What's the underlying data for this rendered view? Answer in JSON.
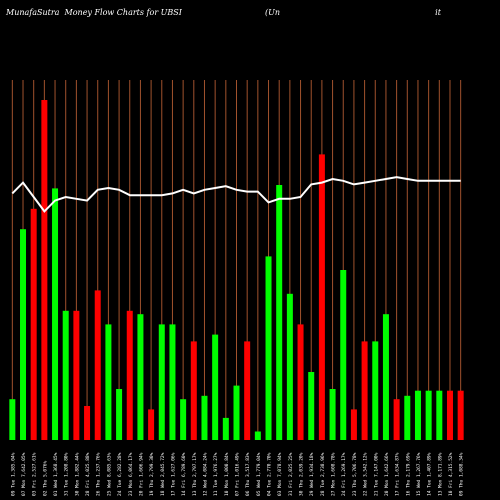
{
  "header": {
    "brand": "MunafaSutra",
    "subtitle": "Money Flow  Charts for UBSI",
    "paren": "(Un",
    "tail": "it"
  },
  "colors": {
    "background": "#000000",
    "up": "#00ff00",
    "down": "#ff0000",
    "grid": "#a0522d",
    "line": "#ffffff",
    "label": "#ffffff"
  },
  "chart_data": {
    "type": "bar",
    "title": "",
    "xlabel": "",
    "ylabel": "",
    "ylim": [
      0,
      100
    ],
    "line_ylim": [
      0,
      100
    ],
    "categories": [
      "09 Tue 1,385.04%",
      "07 Mon 7,642.05%",
      "03 Fri 2,527.61%",
      "02 Thu 5,076%",
      "01 Wed 1,368.45%",
      "31 Tue 1,208.80%",
      "30 Mon 1,882.44%",
      "28 Fri 4,025.88%",
      "26 Thu 1,237.76%",
      "25 Wed 8,085.63%",
      "24 Tue 6,282.28%",
      "23 Mon 6,064.17%",
      "20 Fri 1,606.94%",
      "19 Thu 2,799.30%",
      "18 Wed 2,045.72%",
      "17 Tue 1,627.06%",
      "14 Fri 6,789.60%",
      "13 Thu 2,797.17%",
      "12 Wed 4,084.24%",
      "11 Tue 1,976.27%",
      "10 Mon 1,000.84%",
      "07 Fri 1,016.49%",
      "06 Thu 3,517.83%",
      "05 Wed 1,779.04%",
      "04 Tue 2,770.70%",
      "03 Mon 7,078.94%",
      "31 Fri 2,025.25%",
      "30 Thu 2,039.20%",
      "29 Wed 1,934.18%",
      "28 Tue 2,738.96%",
      "27 Mon 1,608.78%",
      "24 Fri 1,269.17%",
      "23 Thu 5,706.78%",
      "22 Wed 3,542.12%",
      "21 Tue 7,147.00%",
      "20 Mon 1,642.66%",
      "17 Fri 1,634.87%",
      "16 Thu 2,179.69%",
      "15 Wed 1,267.76%",
      "14 Tue 1,407.89%",
      "13 Mon 8,171.89%",
      "10 Fri 4,315.52%",
      "09 Thu 1,088.34%"
    ],
    "colors": [
      "up",
      "up",
      "red",
      "red",
      "up",
      "up",
      "red",
      "red",
      "red",
      "up",
      "up",
      "red",
      "up",
      "red",
      "up",
      "up",
      "up",
      "red",
      "up",
      "up",
      "up",
      "up",
      "red",
      "up",
      "up",
      "up",
      "up",
      "red",
      "up",
      "red",
      "up",
      "up",
      "red",
      "red",
      "up",
      "up",
      "red",
      "up",
      "up",
      "up",
      "up",
      "red",
      "red"
    ],
    "values": [
      12,
      62,
      68,
      100,
      74,
      38,
      38,
      10,
      44,
      34,
      15,
      38,
      37,
      9,
      34,
      34,
      12,
      29,
      13,
      31,
      6.5,
      16,
      29,
      2.5,
      54,
      75,
      43,
      34,
      20,
      84,
      15,
      50,
      9,
      29,
      29,
      37,
      12,
      13,
      14.5,
      14.5,
      14.5,
      14.5,
      14.5
    ],
    "line": [
      68.5,
      71.5,
      67.5,
      63.5,
      66.5,
      67.5,
      67,
      66.5,
      69.5,
      70,
      69.5,
      68,
      68,
      68,
      68,
      68.5,
      69.5,
      68.5,
      69.5,
      70,
      70.5,
      69.5,
      69,
      69,
      66,
      67,
      67,
      67.5,
      71,
      71.5,
      72.5,
      72,
      71,
      71.5,
      72,
      72.5,
      73,
      72.5,
      72,
      72,
      72,
      72,
      72
    ]
  }
}
